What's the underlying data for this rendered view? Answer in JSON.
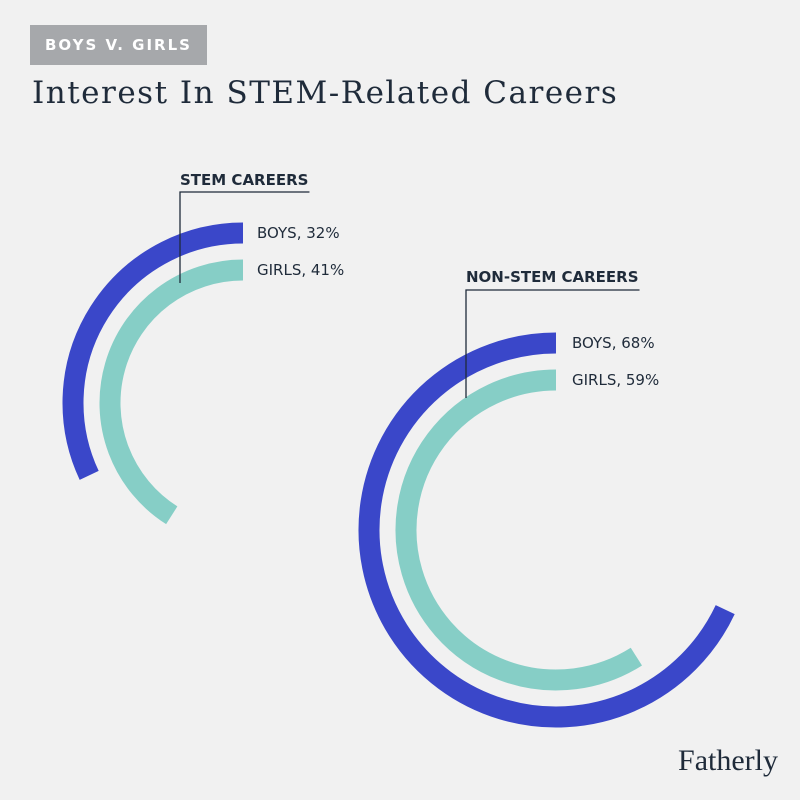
{
  "header": {
    "tag": "BOYS V. GIRLS",
    "title": "Interest In STEM-Related Careers"
  },
  "brand": {
    "logo_text": "Fatherly"
  },
  "colors": {
    "boys": "#3a47c9",
    "girls": "#86cec6",
    "text": "#1f2b3a",
    "background": "#f1f1f1"
  },
  "chart_data": {
    "type": "radial-bar",
    "groups": [
      {
        "name": "STEM CAREERS",
        "series": [
          {
            "name": "BOYS",
            "value": 32,
            "label": "BOYS, 32%"
          },
          {
            "name": "GIRLS",
            "value": 41,
            "label": "GIRLS, 41%"
          }
        ]
      },
      {
        "name": "NON-STEM CAREERS",
        "series": [
          {
            "name": "BOYS",
            "value": 68,
            "label": "BOYS, 68%"
          },
          {
            "name": "GIRLS",
            "value": 59,
            "label": "GIRLS, 59%"
          }
        ]
      }
    ],
    "max": 100
  }
}
